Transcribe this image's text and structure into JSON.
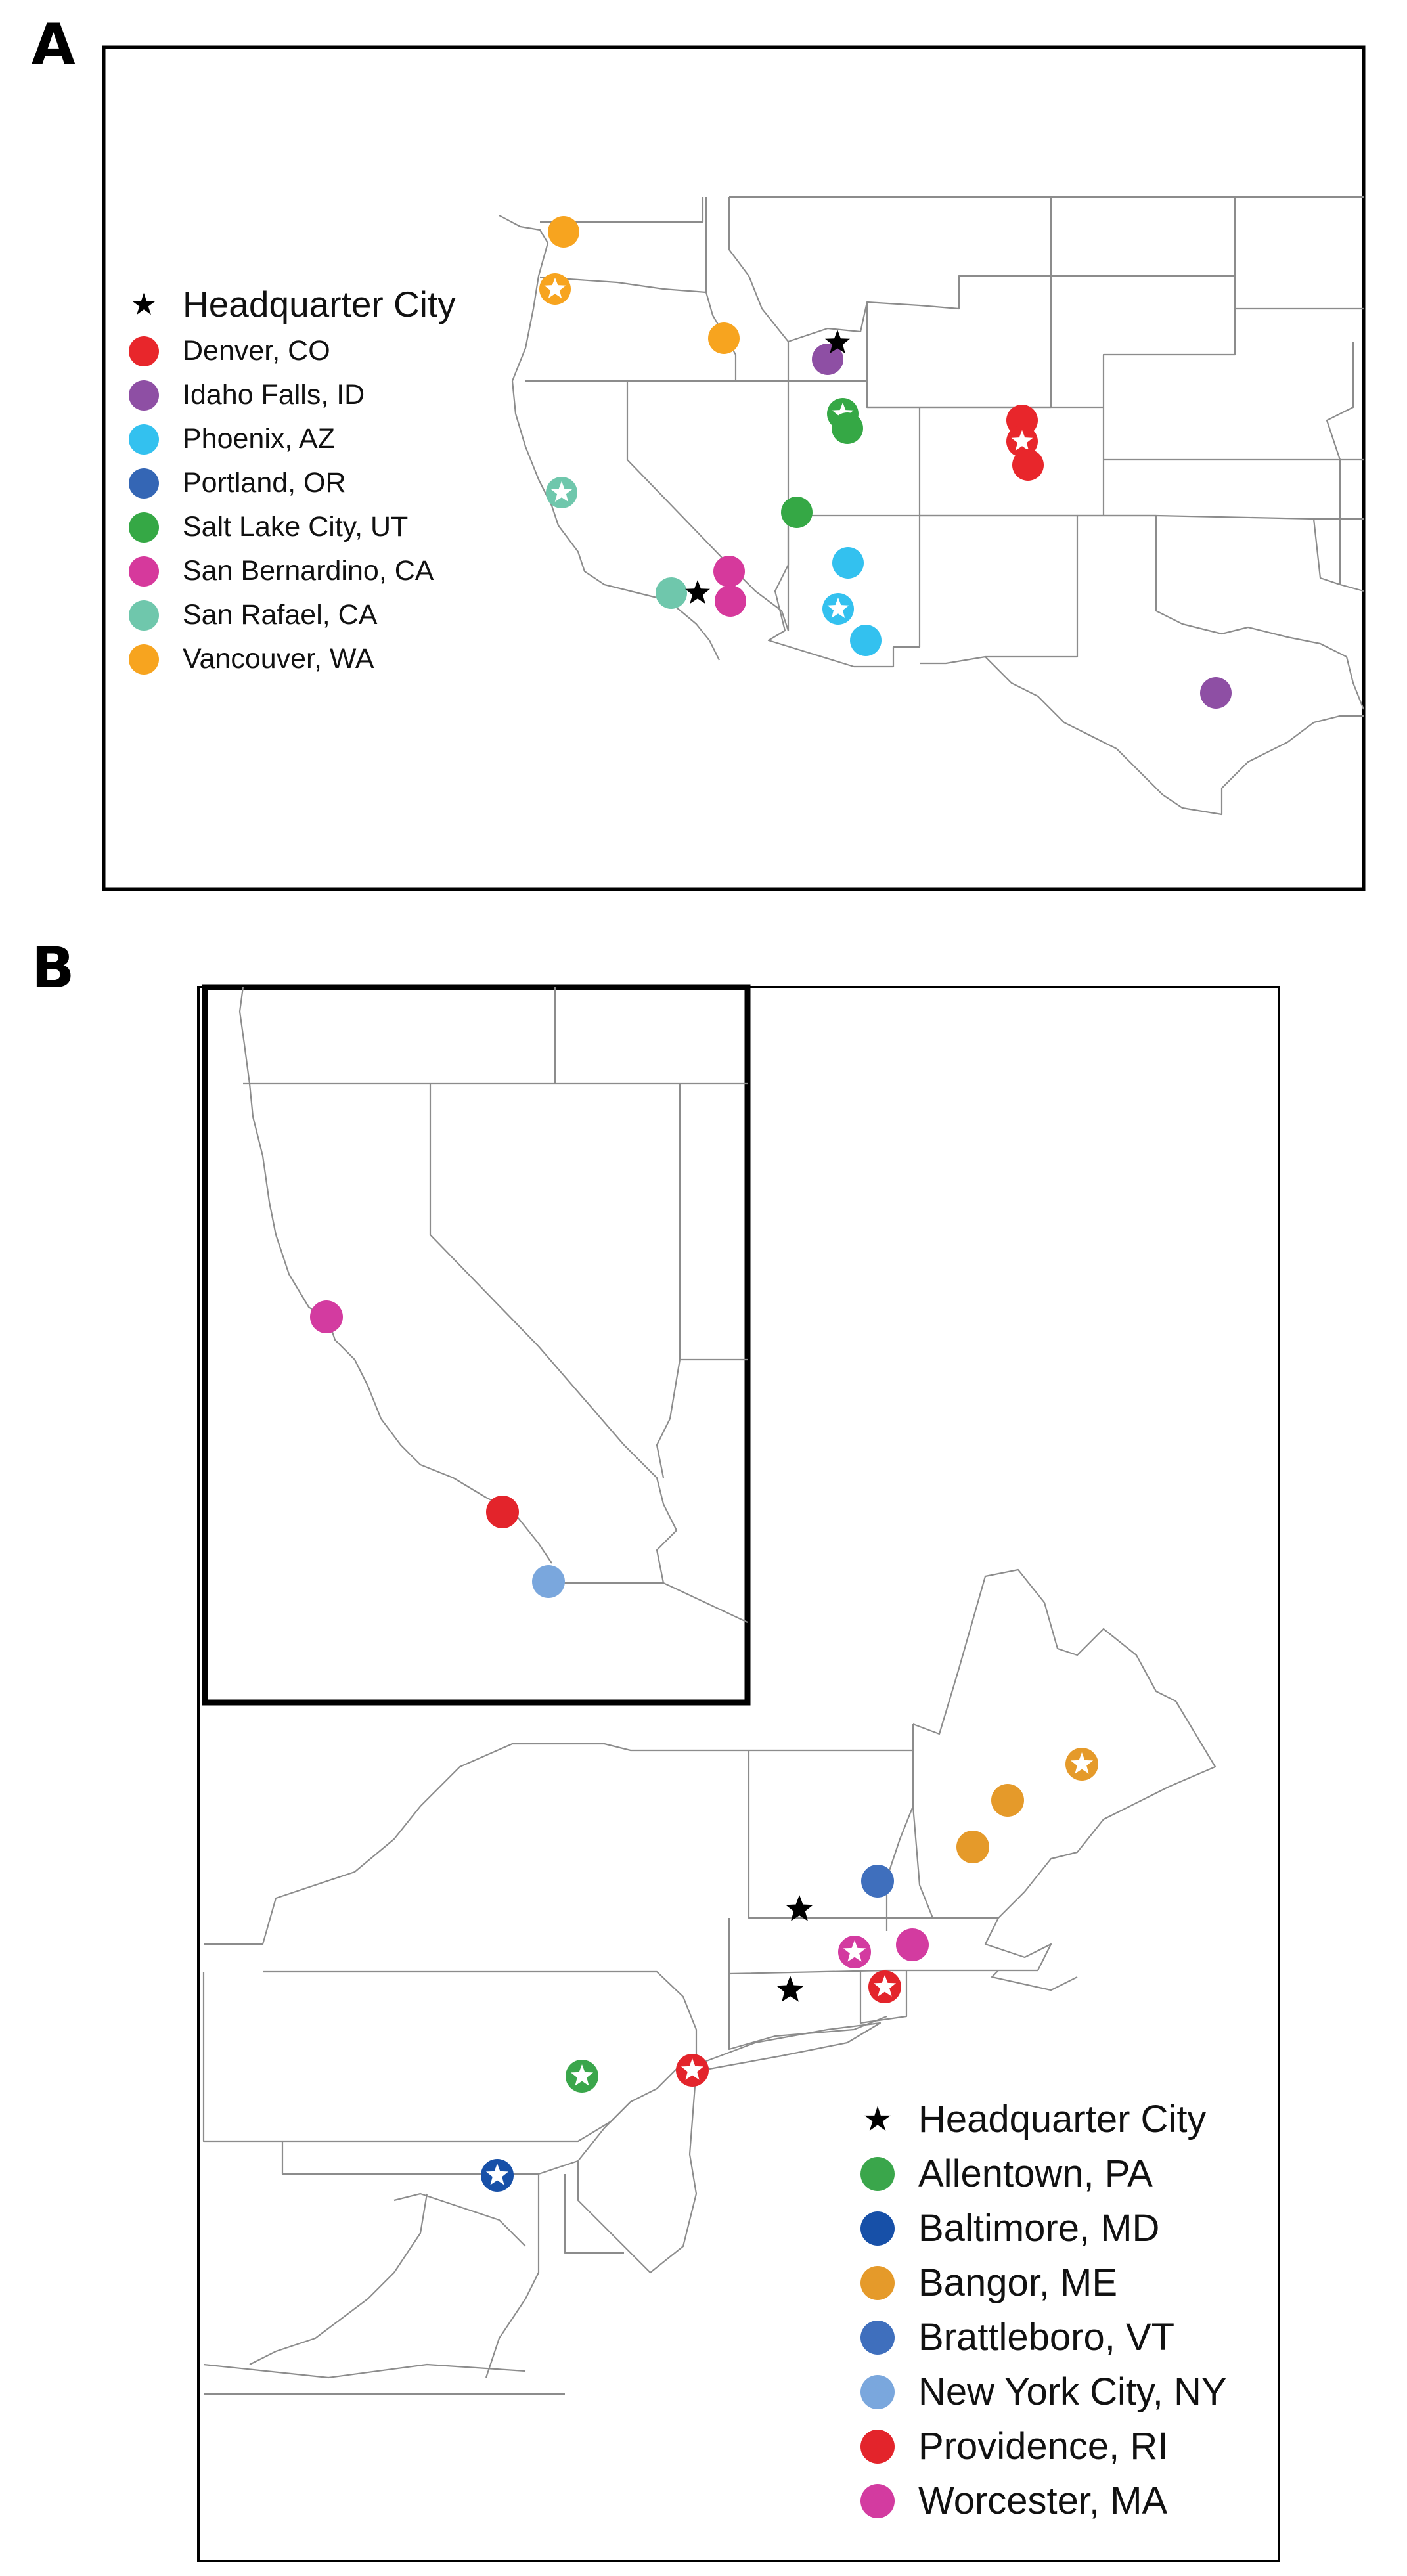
{
  "panels": {
    "a": {
      "letter": "A",
      "legend_title": "Headquarter City",
      "legend_items": [
        {
          "label": "Denver, CO",
          "color": "#e8262b"
        },
        {
          "label": "Idaho Falls, ID",
          "color": "#8e4fa4"
        },
        {
          "label": "Phoenix, AZ",
          "color": "#33c1ef"
        },
        {
          "label": "Portland, OR",
          "color": "#3466b5"
        },
        {
          "label": "Salt Lake City, UT",
          "color": "#35a845"
        },
        {
          "label": "San Bernardino, CA",
          "color": "#d6399c"
        },
        {
          "label": "San Rafael, CA",
          "color": "#6fc7ac"
        },
        {
          "label": "Vancouver, WA",
          "color": "#f7a41f"
        }
      ]
    },
    "b": {
      "letter": "B",
      "legend_title": "Headquarter City",
      "legend_items": [
        {
          "label": "Allentown, PA",
          "color": "#3aa64b"
        },
        {
          "label": "Baltimore, MD",
          "color": "#1750a8"
        },
        {
          "label": "Bangor, ME",
          "color": "#e59a2a"
        },
        {
          "label": "Brattleboro, VT",
          "color": "#3f6fbd"
        },
        {
          "label": "New York City, NY",
          "color": "#7aa7dd"
        },
        {
          "label": "Providence, RI",
          "color": "#e3242b"
        },
        {
          "label": "Worcester, MA",
          "color": "#d33ba0"
        }
      ]
    }
  },
  "marker_glyph": "★"
}
